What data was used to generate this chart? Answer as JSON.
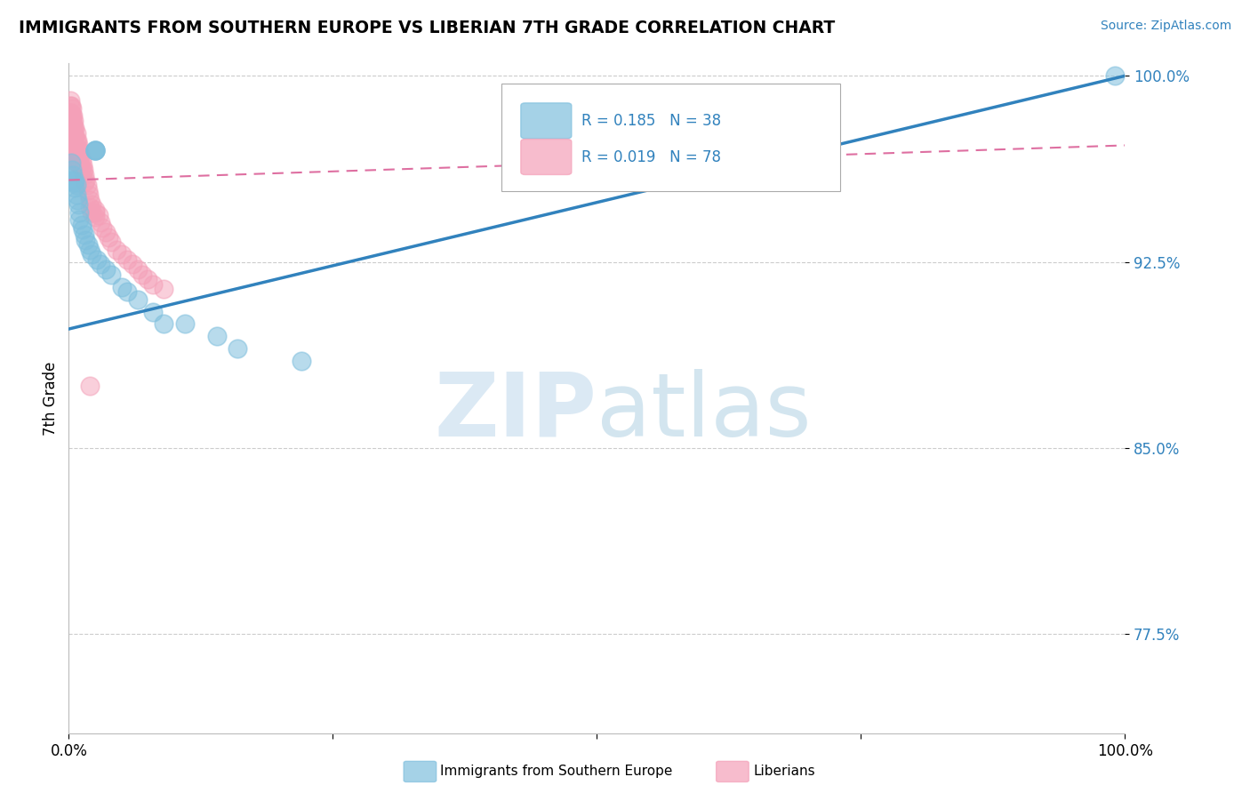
{
  "title": "IMMIGRANTS FROM SOUTHERN EUROPE VS LIBERIAN 7TH GRADE CORRELATION CHART",
  "source": "Source: ZipAtlas.com",
  "ylabel": "7th Grade",
  "legend_blue_r": "R = 0.185",
  "legend_blue_n": "N = 38",
  "legend_pink_r": "R = 0.019",
  "legend_pink_n": "N = 78",
  "legend_blue_label": "Immigrants from Southern Europe",
  "legend_pink_label": "Liberians",
  "xlim": [
    0.0,
    1.0
  ],
  "ylim": [
    0.735,
    1.005
  ],
  "yticks": [
    0.775,
    0.85,
    0.925,
    1.0
  ],
  "ytick_labels": [
    "77.5%",
    "85.0%",
    "92.5%",
    "100.0%"
  ],
  "blue_color": "#7fbfdd",
  "pink_color": "#f4a0b8",
  "blue_line_color": "#3182bd",
  "pink_line_color": "#de6fa1",
  "blue_dots_x": [
    0.002,
    0.003,
    0.003,
    0.004,
    0.005,
    0.006,
    0.006,
    0.007,
    0.007,
    0.008,
    0.009,
    0.01,
    0.01,
    0.012,
    0.013,
    0.015,
    0.016,
    0.018,
    0.02,
    0.022,
    0.025,
    0.025,
    0.025,
    0.025,
    0.027,
    0.03,
    0.035,
    0.04,
    0.05,
    0.055,
    0.065,
    0.08,
    0.09,
    0.11,
    0.14,
    0.16,
    0.22,
    0.99
  ],
  "blue_dots_y": [
    0.965,
    0.962,
    0.958,
    0.96,
    0.957,
    0.955,
    0.958,
    0.952,
    0.956,
    0.95,
    0.948,
    0.945,
    0.942,
    0.94,
    0.938,
    0.936,
    0.934,
    0.932,
    0.93,
    0.928,
    0.97,
    0.97,
    0.97,
    0.97,
    0.926,
    0.924,
    0.922,
    0.92,
    0.915,
    0.913,
    0.91,
    0.905,
    0.9,
    0.9,
    0.895,
    0.89,
    0.885,
    1.0
  ],
  "pink_dots_x": [
    0.001,
    0.001,
    0.001,
    0.002,
    0.002,
    0.002,
    0.002,
    0.003,
    0.003,
    0.003,
    0.003,
    0.003,
    0.003,
    0.004,
    0.004,
    0.004,
    0.004,
    0.005,
    0.005,
    0.005,
    0.005,
    0.005,
    0.006,
    0.006,
    0.006,
    0.006,
    0.006,
    0.007,
    0.007,
    0.007,
    0.007,
    0.007,
    0.008,
    0.008,
    0.008,
    0.008,
    0.009,
    0.009,
    0.009,
    0.01,
    0.01,
    0.01,
    0.011,
    0.011,
    0.012,
    0.012,
    0.013,
    0.013,
    0.014,
    0.015,
    0.015,
    0.016,
    0.017,
    0.018,
    0.019,
    0.02,
    0.02,
    0.022,
    0.022,
    0.025,
    0.025,
    0.028,
    0.03,
    0.032,
    0.035,
    0.038,
    0.04,
    0.045,
    0.05,
    0.055,
    0.06,
    0.065,
    0.07,
    0.075,
    0.08,
    0.09,
    0.025,
    0.02
  ],
  "pink_dots_y": [
    0.99,
    0.988,
    0.985,
    0.988,
    0.985,
    0.982,
    0.979,
    0.987,
    0.984,
    0.981,
    0.978,
    0.975,
    0.972,
    0.984,
    0.981,
    0.978,
    0.975,
    0.982,
    0.979,
    0.976,
    0.973,
    0.97,
    0.979,
    0.976,
    0.973,
    0.97,
    0.967,
    0.977,
    0.974,
    0.971,
    0.968,
    0.965,
    0.974,
    0.971,
    0.968,
    0.965,
    0.972,
    0.969,
    0.966,
    0.97,
    0.967,
    0.964,
    0.968,
    0.965,
    0.966,
    0.963,
    0.964,
    0.961,
    0.962,
    0.96,
    0.957,
    0.958,
    0.956,
    0.954,
    0.952,
    0.95,
    0.947,
    0.948,
    0.945,
    0.946,
    0.943,
    0.944,
    0.941,
    0.939,
    0.937,
    0.935,
    0.933,
    0.93,
    0.928,
    0.926,
    0.924,
    0.922,
    0.92,
    0.918,
    0.916,
    0.914,
    0.945,
    0.875
  ],
  "blue_trend_y_start": 0.898,
  "blue_trend_y_end": 1.0,
  "pink_trend_y_start": 0.958,
  "pink_trend_y_end": 0.972,
  "watermark_zip": "ZIP",
  "watermark_atlas": "atlas",
  "background_color": "#ffffff",
  "grid_color": "#cccccc"
}
